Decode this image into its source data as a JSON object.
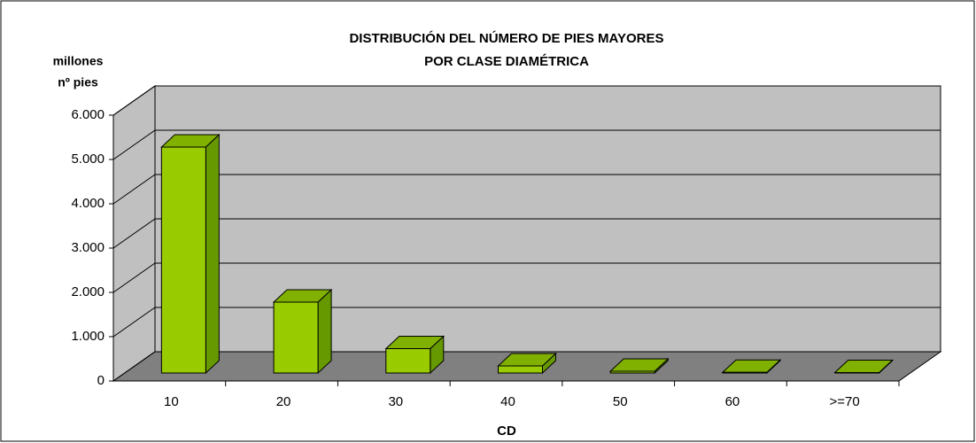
{
  "chart_data": {
    "type": "bar3d",
    "title": [
      "DISTRIBUCIÓN DEL NÚMERO DE PIES MAYORES",
      "POR CLASE DIAMÉTRICA"
    ],
    "y_label": [
      "millones",
      "nº pies"
    ],
    "x_label": "CD",
    "categories": [
      "10",
      "20",
      "30",
      "40",
      "50",
      "60",
      ">=70"
    ],
    "values": [
      5100,
      1600,
      550,
      160,
      40,
      15,
      10
    ],
    "color": "#99cc00",
    "ylim": [
      0,
      6000
    ],
    "yticks": [
      0,
      {
        "value": 1000,
        "label": "1.000"
      },
      {
        "value": 2000,
        "label": "2.000"
      },
      {
        "value": 3000,
        "label": "3.000"
      },
      {
        "value": 4000,
        "label": "4.000"
      },
      {
        "value": 5000,
        "label": "5.000"
      },
      {
        "value": 6000,
        "label": "6.000"
      }
    ],
    "grid": true
  }
}
